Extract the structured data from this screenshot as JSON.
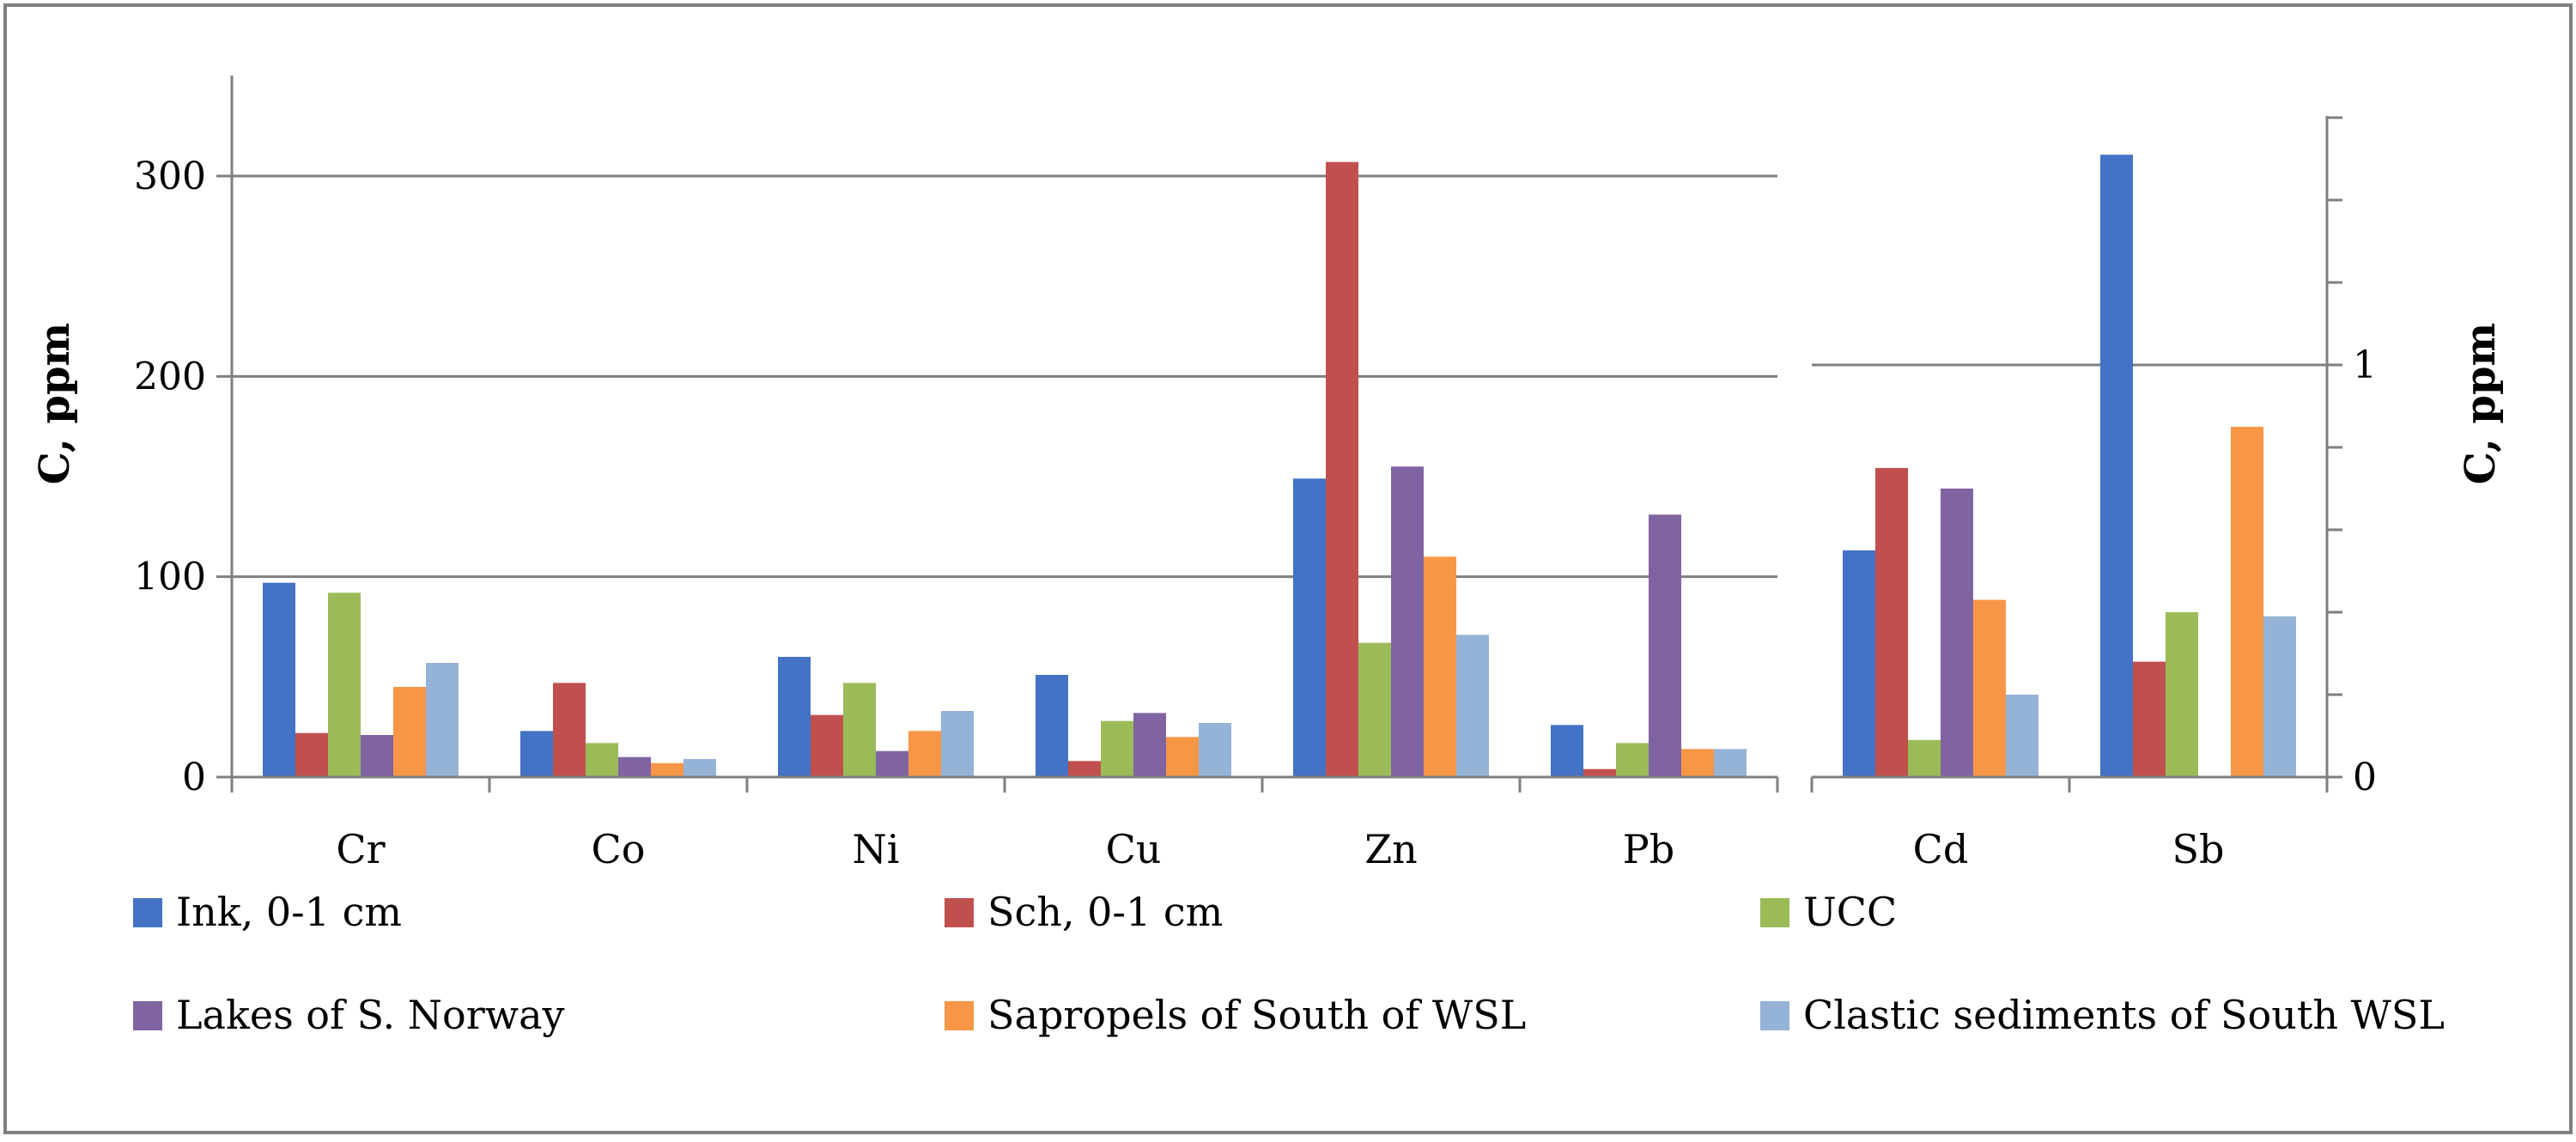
{
  "chart_data": [
    {
      "type": "bar",
      "ylabel": "C, ppm",
      "ylim": [
        0,
        350
      ],
      "yticks": [
        "0",
        "100",
        "200",
        "300"
      ],
      "grid": true,
      "categories": [
        "Cr",
        "Co",
        "Ni",
        "Cu",
        "Zn",
        "Pb"
      ],
      "series": [
        {
          "name": "Ink, 0-1 cm",
          "values": [
            97,
            23,
            60,
            51,
            149,
            26
          ]
        },
        {
          "name": "Sch, 0-1 cm",
          "values": [
            22,
            47,
            31,
            8,
            307,
            4
          ]
        },
        {
          "name": "UCC",
          "values": [
            92,
            17,
            47,
            28,
            67,
            17
          ]
        },
        {
          "name": "Lakes of S. Norway",
          "values": [
            21,
            10,
            13,
            32,
            155,
            131
          ]
        },
        {
          "name": "Sapropels of South of WSL",
          "values": [
            45,
            7,
            23,
            20,
            110,
            14
          ]
        },
        {
          "name": "Clastic sediments of South WSL",
          "values": [
            57,
            9,
            33,
            27,
            71,
            14
          ]
        }
      ]
    },
    {
      "type": "bar",
      "ylabel": "C, ppm",
      "ylabel_side": "right",
      "ylim": [
        0,
        1.6
      ],
      "yticks": [
        "0",
        "1"
      ],
      "grid": true,
      "categories": [
        "Cd",
        "Sb"
      ],
      "series": [
        {
          "name": "Ink, 0-1 cm",
          "values": [
            0.55,
            1.51
          ]
        },
        {
          "name": "Sch, 0-1 cm",
          "values": [
            0.75,
            0.28
          ]
        },
        {
          "name": "UCC",
          "values": [
            0.09,
            0.4
          ]
        },
        {
          "name": "Lakes of S. Norway",
          "values": [
            0.7,
            0
          ]
        },
        {
          "name": "Sapropels of South of WSL",
          "values": [
            0.43,
            0.85
          ]
        },
        {
          "name": "Clastic sediments of South WSL",
          "values": [
            0.2,
            0.39
          ]
        }
      ]
    }
  ],
  "colors": [
    "#4472C4",
    "#C0504D",
    "#9BBB59",
    "#8064A2",
    "#F79646",
    "#95B3D7"
  ],
  "legend": {
    "position": "bottom",
    "items": [
      "Ink, 0-1 cm",
      "Sch, 0-1 cm",
      "UCC",
      "Lakes of S. Norway",
      "Sapropels of South of WSL",
      "Clastic sediments of South WSL"
    ]
  }
}
